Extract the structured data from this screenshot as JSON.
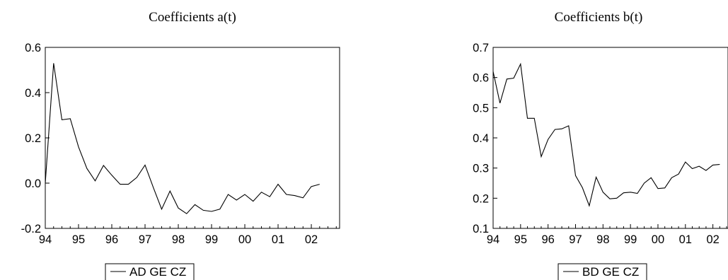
{
  "chart_data": [
    {
      "type": "line",
      "title": "Coefficients a(t)",
      "xlabel": "",
      "ylabel": "",
      "ylim": [
        -0.2,
        0.6
      ],
      "yticks": [
        "-0.2",
        "0.0",
        "0.2",
        "0.4",
        "0.6"
      ],
      "xlim": [
        1994.0,
        2002.85
      ],
      "xticks": [
        {
          "label": "94",
          "value": 1994.0
        },
        {
          "label": "95",
          "value": 1995.0
        },
        {
          "label": "96",
          "value": 1996.0
        },
        {
          "label": "97",
          "value": 1997.0
        },
        {
          "label": "98",
          "value": 1998.0
        },
        {
          "label": "99",
          "value": 1999.0
        },
        {
          "label": "00",
          "value": 2000.0
        },
        {
          "label": "01",
          "value": 2001.0
        },
        {
          "label": "02",
          "value": 2002.0
        }
      ],
      "grid": false,
      "legend_position": "bottom-center",
      "legend_text": "AD GE CZ",
      "series": [
        {
          "name": "AD GE CZ",
          "x": [
            1994.0,
            1994.25,
            1994.5,
            1994.75,
            1995.0,
            1995.25,
            1995.5,
            1995.75,
            1996.0,
            1996.25,
            1996.5,
            1996.75,
            1997.0,
            1997.25,
            1997.5,
            1997.75,
            1998.0,
            1998.25,
            1998.5,
            1998.75,
            1999.0,
            1999.25,
            1999.5,
            1999.75,
            2000.0,
            2000.25,
            2000.5,
            2000.75,
            2001.0,
            2001.25,
            2001.5,
            2001.75,
            2002.0,
            2002.25
          ],
          "values": [
            0.0,
            0.53,
            0.28,
            0.285,
            0.16,
            0.065,
            0.01,
            0.078,
            0.035,
            -0.005,
            -0.005,
            0.025,
            0.08,
            -0.02,
            -0.115,
            -0.035,
            -0.11,
            -0.135,
            -0.095,
            -0.12,
            -0.125,
            -0.115,
            -0.05,
            -0.075,
            -0.05,
            -0.08,
            -0.04,
            -0.06,
            -0.005,
            -0.05,
            -0.055,
            -0.065,
            -0.015,
            -0.005
          ]
        }
      ]
    },
    {
      "type": "line",
      "title": "Coefficients b(t)",
      "xlabel": "",
      "ylabel": "",
      "ylim": [
        0.1,
        0.7
      ],
      "yticks": [
        "0.1",
        "0.2",
        "0.3",
        "0.4",
        "0.5",
        "0.6",
        "0.7"
      ],
      "xlim": [
        1994.0,
        2002.55
      ],
      "xticks": [
        {
          "label": "94",
          "value": 1994.0
        },
        {
          "label": "95",
          "value": 1995.0
        },
        {
          "label": "96",
          "value": 1996.0
        },
        {
          "label": "97",
          "value": 1997.0
        },
        {
          "label": "98",
          "value": 1998.0
        },
        {
          "label": "99",
          "value": 1999.0
        },
        {
          "label": "00",
          "value": 2000.0
        },
        {
          "label": "01",
          "value": 2001.0
        },
        {
          "label": "02",
          "value": 2002.0
        }
      ],
      "grid": false,
      "legend_position": "bottom-center",
      "legend_text": "BD GE CZ",
      "series": [
        {
          "name": "BD GE CZ",
          "x": [
            1994.0,
            1994.25,
            1994.5,
            1994.75,
            1995.0,
            1995.25,
            1995.5,
            1995.75,
            1996.0,
            1996.25,
            1996.5,
            1996.75,
            1997.0,
            1997.25,
            1997.5,
            1997.75,
            1998.0,
            1998.25,
            1998.5,
            1998.75,
            1999.0,
            1999.25,
            1999.5,
            1999.75,
            2000.0,
            2000.25,
            2000.5,
            2000.75,
            2001.0,
            2001.25,
            2001.5,
            2001.75,
            2002.0,
            2002.25
          ],
          "values": [
            0.62,
            0.515,
            0.595,
            0.598,
            0.645,
            0.465,
            0.465,
            0.338,
            0.395,
            0.428,
            0.43,
            0.44,
            0.275,
            0.235,
            0.175,
            0.27,
            0.22,
            0.198,
            0.2,
            0.218,
            0.22,
            0.216,
            0.25,
            0.268,
            0.232,
            0.234,
            0.268,
            0.28,
            0.32,
            0.298,
            0.306,
            0.292,
            0.31,
            0.312
          ]
        }
      ]
    }
  ]
}
